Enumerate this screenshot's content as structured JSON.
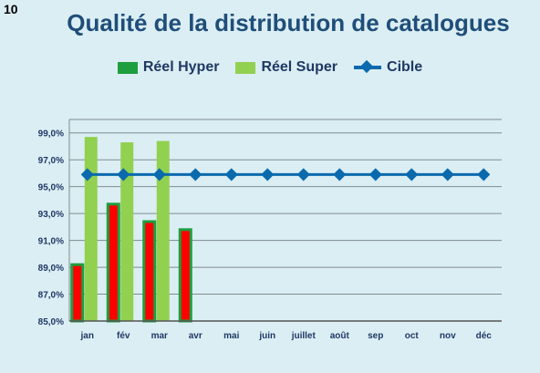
{
  "slide_number": "10",
  "chart_data": {
    "type": "bar",
    "title": "Qualité de la distribution de catalogues",
    "categories": [
      "jan",
      "fév",
      "mar",
      "avr",
      "mai",
      "juin",
      "juillet",
      "août",
      "sep",
      "oct",
      "nov",
      "déc"
    ],
    "series": [
      {
        "name": "Réel Hyper",
        "kind": "bar",
        "values": [
          89.2,
          93.7,
          92.4,
          91.8,
          null,
          null,
          null,
          null,
          null,
          null,
          null,
          null
        ]
      },
      {
        "name": "Réel Super",
        "kind": "bar",
        "values": [
          98.7,
          98.3,
          98.4,
          null,
          null,
          null,
          null,
          null,
          null,
          null,
          null,
          null
        ]
      },
      {
        "name": "Cible",
        "kind": "line",
        "values": [
          95.9,
          95.9,
          95.9,
          95.9,
          95.9,
          95.9,
          95.9,
          95.9,
          95.9,
          95.9,
          95.9,
          95.9
        ]
      }
    ],
    "ylim": [
      85,
      100
    ],
    "yticks": [
      "85,0%",
      "87,0%",
      "89,0%",
      "91,0%",
      "93,0%",
      "95,0%",
      "97,0%",
      "99,0%"
    ],
    "grid": true,
    "legend_position": "top",
    "colors": {
      "hyper_fill": "#ff0000",
      "hyper_border": "#1e9e3e",
      "super": "#92d050",
      "cible": "#0b6aad",
      "grid": "#7f8c8d",
      "axis_text": "#1f3864"
    }
  }
}
